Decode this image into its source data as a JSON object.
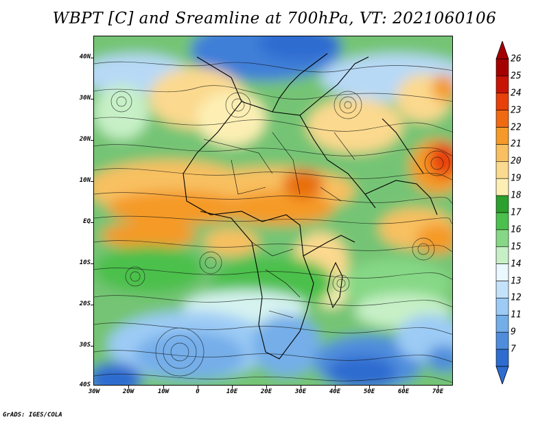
{
  "title": "WBPT [C] and Sreamline at 700hPa, VT: 2021060106",
  "credit": "GrADS: IGES/COLA",
  "lat_labels": [
    "40N",
    "30N",
    "20N",
    "10N",
    "EQ",
    "10S",
    "20S",
    "30S",
    "40S"
  ],
  "lon_labels": [
    "30W",
    "20W",
    "10W",
    "0",
    "10E",
    "20E",
    "30E",
    "40E",
    "50E",
    "60E",
    "70E"
  ],
  "colorbar": {
    "levels": [
      "26",
      "25",
      "24",
      "23",
      "22",
      "21",
      "20",
      "19",
      "18",
      "17",
      "16",
      "15",
      "14",
      "13",
      "12",
      "11",
      "9",
      "7"
    ],
    "colors": [
      "#a50000",
      "#c81405",
      "#e8400a",
      "#f06a14",
      "#f59a28",
      "#f8c060",
      "#fbd98e",
      "#fdefb4",
      "#2ca02c",
      "#4cc04c",
      "#86d886",
      "#c7f0c7",
      "#eaf8ff",
      "#c4e3fb",
      "#9ccbf5",
      "#74aee9",
      "#4f8ddc",
      "#2e6cd0"
    ],
    "top_arrow_color": "#a50000",
    "bottom_arrow_color": "#2e6cd0"
  }
}
